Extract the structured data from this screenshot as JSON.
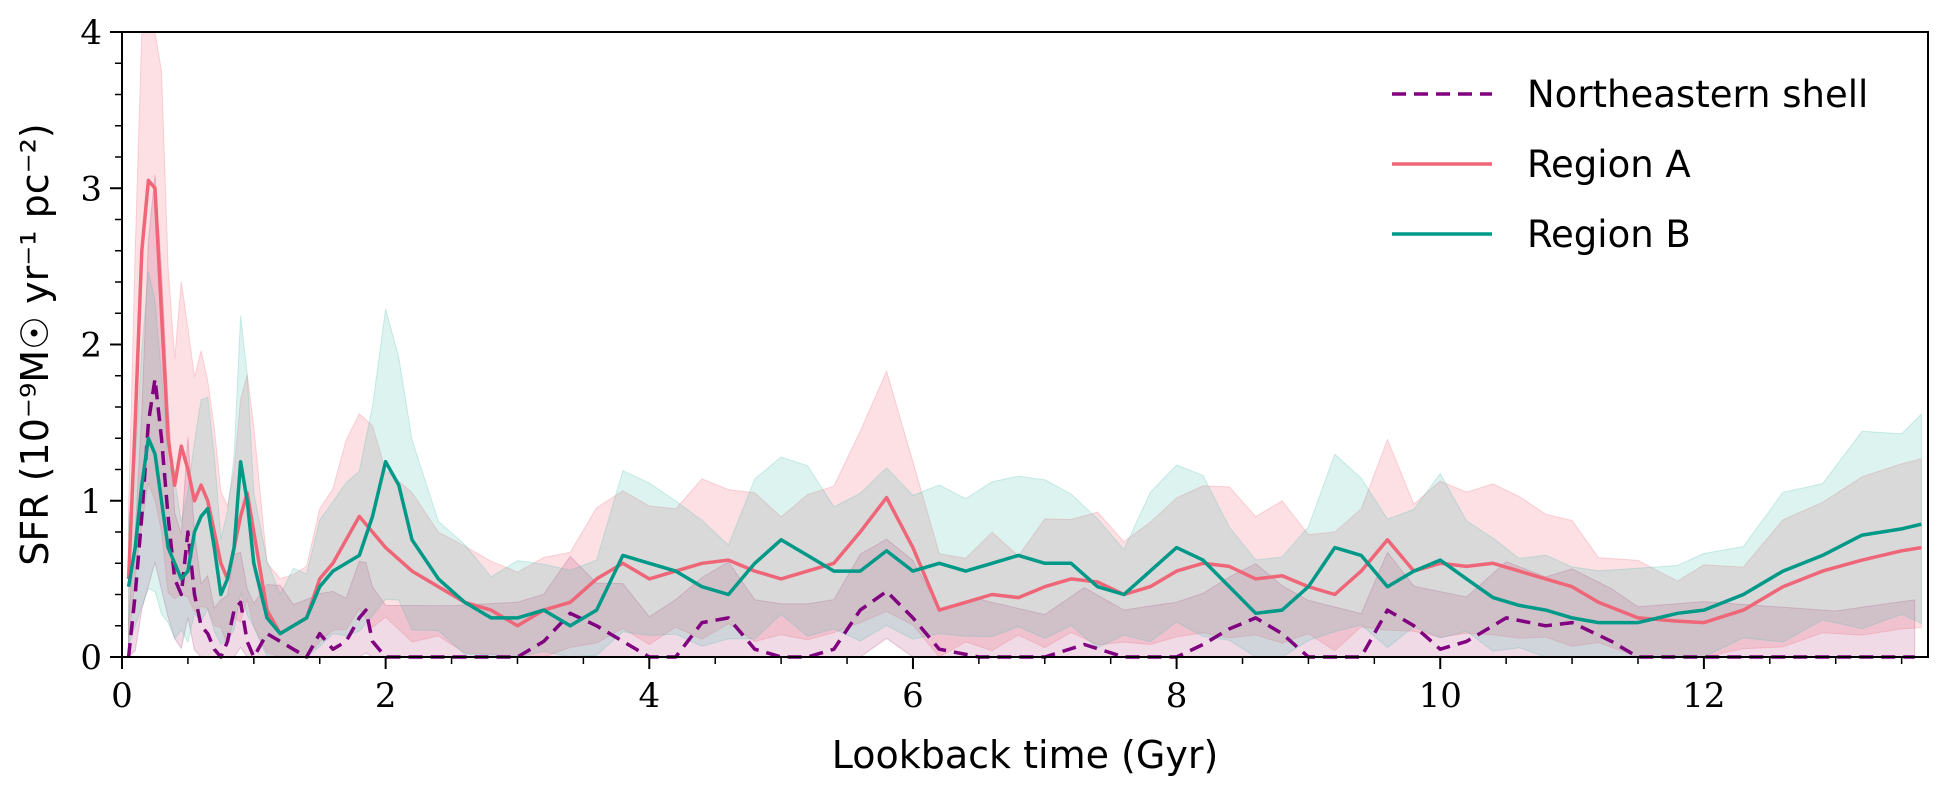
{
  "chart_data": {
    "type": "line",
    "title": "",
    "xlabel": "Lookback time (Gyr)",
    "ylabel": "SFR (10⁻⁹M☉ yr⁻¹ pc⁻²)",
    "xlim": [
      0,
      13.7
    ],
    "ylim": [
      0,
      4
    ],
    "xticks": [
      0,
      2,
      4,
      6,
      8,
      10,
      12
    ],
    "yticks": [
      0,
      1,
      2,
      3,
      4
    ],
    "grid": false,
    "legend_position": "top-right",
    "series": [
      {
        "name": "Northeastern shell",
        "color": "#800080",
        "style": "dashed",
        "x": [
          0.05,
          0.1,
          0.15,
          0.2,
          0.25,
          0.3,
          0.35,
          0.4,
          0.45,
          0.5,
          0.55,
          0.6,
          0.65,
          0.7,
          0.75,
          0.8,
          0.85,
          0.9,
          0.95,
          1.0,
          1.1,
          1.2,
          1.3,
          1.4,
          1.5,
          1.6,
          1.7,
          1.8,
          1.85,
          1.9,
          2.0,
          2.5,
          3.0,
          3.2,
          3.4,
          3.6,
          3.8,
          4.0,
          4.2,
          4.4,
          4.6,
          4.8,
          5.0,
          5.2,
          5.4,
          5.6,
          5.8,
          6.0,
          6.2,
          6.5,
          7.0,
          7.3,
          7.6,
          8.0,
          8.2,
          8.4,
          8.6,
          8.8,
          9.0,
          9.4,
          9.6,
          9.8,
          10.0,
          10.2,
          10.5,
          10.8,
          11.0,
          11.3,
          11.5,
          12.0,
          13.0,
          13.6
        ],
        "y": [
          0.0,
          0.4,
          0.9,
          1.5,
          1.78,
          1.4,
          0.9,
          0.5,
          0.4,
          0.8,
          0.4,
          0.2,
          0.15,
          0.05,
          0.0,
          0.1,
          0.3,
          0.35,
          0.1,
          0.0,
          0.15,
          0.1,
          0.05,
          0.0,
          0.15,
          0.05,
          0.1,
          0.25,
          0.3,
          0.1,
          0.0,
          0.0,
          0.0,
          0.1,
          0.28,
          0.2,
          0.1,
          0.0,
          0.0,
          0.22,
          0.25,
          0.05,
          0.0,
          0.0,
          0.05,
          0.3,
          0.42,
          0.25,
          0.05,
          0.0,
          0.0,
          0.08,
          0.0,
          0.0,
          0.08,
          0.18,
          0.25,
          0.15,
          0.0,
          0.0,
          0.3,
          0.2,
          0.05,
          0.1,
          0.25,
          0.2,
          0.22,
          0.1,
          0.0,
          0.0,
          0.0,
          0.0
        ]
      },
      {
        "name": "Region A",
        "color": "#EE6677",
        "style": "solid",
        "x": [
          0.05,
          0.1,
          0.15,
          0.2,
          0.25,
          0.3,
          0.35,
          0.4,
          0.45,
          0.5,
          0.55,
          0.6,
          0.65,
          0.7,
          0.75,
          0.8,
          0.85,
          0.9,
          0.95,
          1.0,
          1.1,
          1.2,
          1.3,
          1.4,
          1.5,
          1.6,
          1.7,
          1.8,
          1.9,
          2.0,
          2.2,
          2.4,
          2.6,
          2.8,
          3.0,
          3.2,
          3.4,
          3.6,
          3.8,
          4.0,
          4.2,
          4.4,
          4.6,
          4.8,
          5.0,
          5.2,
          5.4,
          5.6,
          5.8,
          6.0,
          6.2,
          6.4,
          6.6,
          6.8,
          7.0,
          7.2,
          7.4,
          7.6,
          7.8,
          8.0,
          8.2,
          8.4,
          8.6,
          8.8,
          9.0,
          9.2,
          9.4,
          9.6,
          9.8,
          10.0,
          10.2,
          10.4,
          10.6,
          10.8,
          11.0,
          11.2,
          11.5,
          11.8,
          12.0,
          12.3,
          12.6,
          12.9,
          13.2,
          13.5,
          13.65
        ],
        "y": [
          0.5,
          1.5,
          2.6,
          3.05,
          3.0,
          2.2,
          1.4,
          1.1,
          1.35,
          1.2,
          1.0,
          1.1,
          1.0,
          0.8,
          0.6,
          0.5,
          0.7,
          0.9,
          1.05,
          0.8,
          0.3,
          0.15,
          0.2,
          0.25,
          0.5,
          0.6,
          0.75,
          0.9,
          0.8,
          0.7,
          0.55,
          0.45,
          0.35,
          0.3,
          0.2,
          0.3,
          0.35,
          0.5,
          0.6,
          0.5,
          0.55,
          0.6,
          0.62,
          0.55,
          0.5,
          0.55,
          0.6,
          0.8,
          1.02,
          0.7,
          0.3,
          0.35,
          0.4,
          0.38,
          0.45,
          0.5,
          0.48,
          0.4,
          0.45,
          0.55,
          0.6,
          0.58,
          0.5,
          0.52,
          0.45,
          0.4,
          0.55,
          0.75,
          0.55,
          0.6,
          0.58,
          0.6,
          0.55,
          0.5,
          0.45,
          0.35,
          0.25,
          0.23,
          0.22,
          0.3,
          0.45,
          0.55,
          0.62,
          0.68,
          0.7
        ]
      },
      {
        "name": "Region B",
        "color": "#009988",
        "style": "solid",
        "x": [
          0.05,
          0.1,
          0.15,
          0.2,
          0.25,
          0.3,
          0.35,
          0.4,
          0.45,
          0.5,
          0.55,
          0.6,
          0.65,
          0.7,
          0.75,
          0.8,
          0.85,
          0.9,
          0.95,
          1.0,
          1.1,
          1.2,
          1.3,
          1.4,
          1.5,
          1.6,
          1.7,
          1.8,
          1.9,
          2.0,
          2.1,
          2.2,
          2.4,
          2.6,
          2.8,
          3.0,
          3.2,
          3.4,
          3.6,
          3.8,
          4.0,
          4.2,
          4.4,
          4.6,
          4.8,
          5.0,
          5.2,
          5.4,
          5.6,
          5.8,
          6.0,
          6.2,
          6.4,
          6.6,
          6.8,
          7.0,
          7.2,
          7.4,
          7.6,
          7.8,
          8.0,
          8.2,
          8.4,
          8.6,
          8.8,
          9.0,
          9.2,
          9.4,
          9.6,
          9.8,
          10.0,
          10.2,
          10.4,
          10.6,
          10.8,
          11.0,
          11.2,
          11.5,
          11.8,
          12.0,
          12.3,
          12.6,
          12.9,
          13.2,
          13.5,
          13.65
        ],
        "y": [
          0.45,
          0.7,
          1.1,
          1.4,
          1.3,
          1.0,
          0.7,
          0.6,
          0.5,
          0.55,
          0.8,
          0.9,
          0.95,
          0.7,
          0.4,
          0.5,
          0.7,
          1.25,
          1.0,
          0.6,
          0.25,
          0.15,
          0.2,
          0.25,
          0.45,
          0.55,
          0.6,
          0.65,
          0.9,
          1.25,
          1.1,
          0.75,
          0.5,
          0.35,
          0.25,
          0.25,
          0.3,
          0.2,
          0.3,
          0.65,
          0.6,
          0.55,
          0.45,
          0.4,
          0.6,
          0.75,
          0.65,
          0.55,
          0.55,
          0.68,
          0.55,
          0.6,
          0.55,
          0.6,
          0.65,
          0.6,
          0.6,
          0.45,
          0.4,
          0.55,
          0.7,
          0.62,
          0.45,
          0.28,
          0.3,
          0.45,
          0.7,
          0.65,
          0.45,
          0.55,
          0.62,
          0.5,
          0.38,
          0.33,
          0.3,
          0.25,
          0.22,
          0.22,
          0.28,
          0.3,
          0.4,
          0.55,
          0.65,
          0.78,
          0.82,
          0.85
        ]
      }
    ]
  }
}
